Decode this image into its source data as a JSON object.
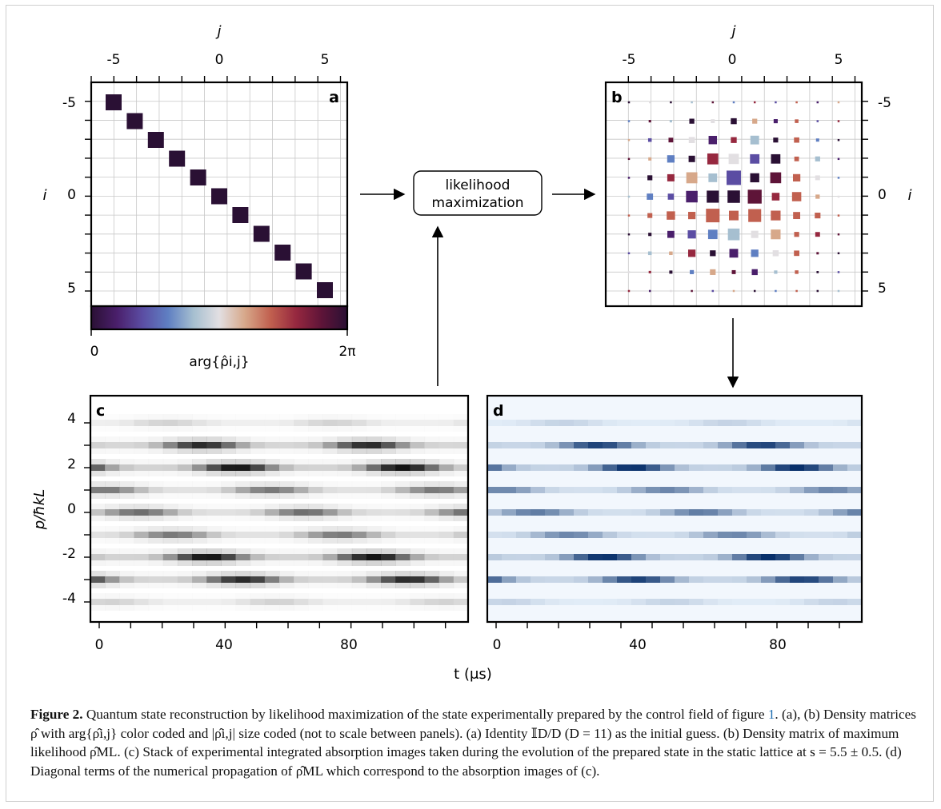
{
  "figure": {
    "panel_labels": {
      "a": "a",
      "b": "b",
      "c": "c",
      "d": "d"
    },
    "matrix_axes": {
      "top_label": "j",
      "side_label": "i",
      "ticks": [
        "-5",
        "0",
        "5"
      ]
    },
    "colorbar": {
      "min_label": "0",
      "max_label": "2π",
      "label": "arg{ρ̂i,j}"
    },
    "flow_box": {
      "line1": "likelihood",
      "line2": "maximization"
    },
    "image_axes": {
      "y_label": "p/ħkL",
      "x_label": "t (μs)",
      "y_ticks": [
        "4",
        "2",
        "0",
        "-2",
        "-4"
      ],
      "x_ticks": [
        "0",
        "40",
        "80"
      ]
    },
    "colors": {
      "phase_map": [
        "#2a1034",
        "#4a1f6b",
        "#5b4da3",
        "#5f7fc2",
        "#a6bfd0",
        "#e2dfe2",
        "#d7a88a",
        "#c1604f",
        "#96283f",
        "#5e1438",
        "#2a1034"
      ],
      "panel_c_dark": "#111111",
      "panel_d_dark": "#08306b",
      "panel_d_bg": "#f2f7fd"
    }
  },
  "caption": {
    "label": "Figure 2.",
    "text_1": " Quantum state reconstruction by likelihood maximization of the state experimentally prepared by the control field of figure ",
    "ref": "1",
    "text_2": ". (a), (b) Density matrices ρ̂ with arg{ρ̂i,j} color coded and |ρ̂i,j| size coded (not to scale between panels). (a) Identity 𝕀D/D (D = 11) as the initial guess. (b) Density matrix of maximum likelihood ρ̂ML. (c) Stack of experimental integrated absorption images taken during the evolution of the prepared state in the static lattice at s = 5.5 ± 0.5. (d) Diagonal terms of the numerical propagation of ρ̂ML which correspond to the absorption images of (c)."
  }
}
